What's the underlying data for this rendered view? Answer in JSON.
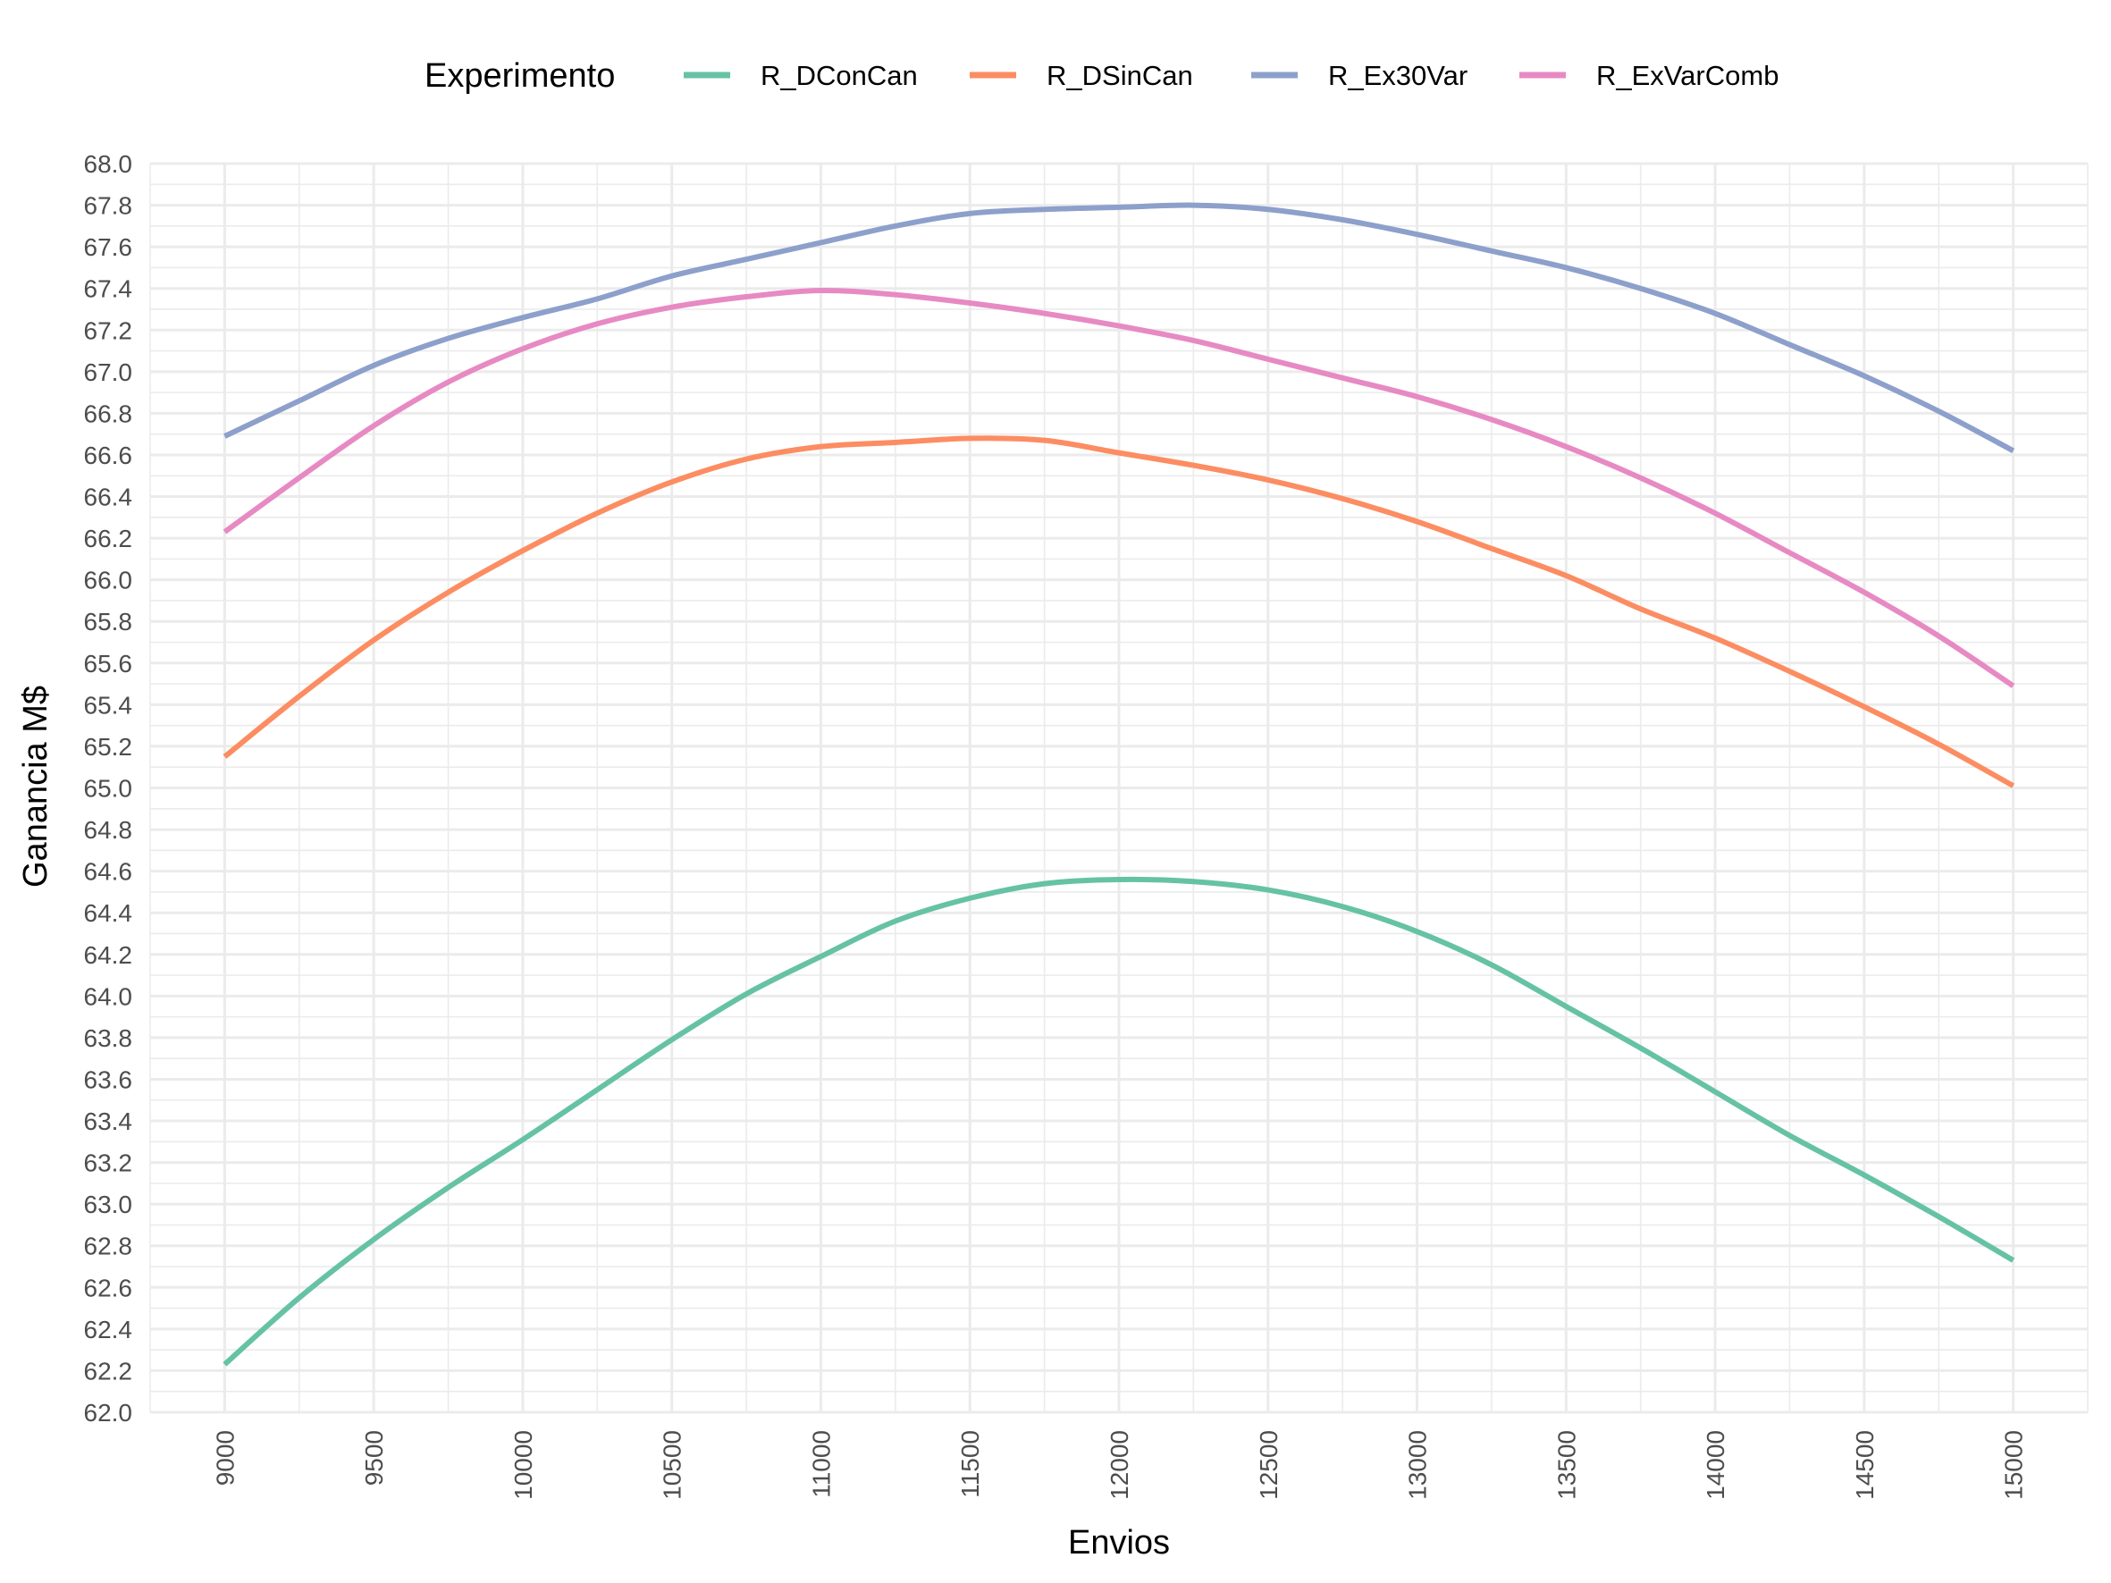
{
  "chart_data": {
    "type": "line",
    "title": "",
    "xlabel": "Envios",
    "ylabel": "Ganancia M$",
    "xlim": [
      8750,
      15250
    ],
    "ylim": [
      62.0,
      68.0
    ],
    "x_ticks": [
      "9000",
      "9500",
      "10000",
      "10500",
      "11000",
      "11500",
      "12000",
      "12500",
      "13000",
      "13500",
      "14000",
      "14500",
      "15000"
    ],
    "y_ticks": [
      "62.0",
      "62.2",
      "62.4",
      "62.6",
      "62.8",
      "63.0",
      "63.2",
      "63.4",
      "63.6",
      "63.8",
      "64.0",
      "64.2",
      "64.4",
      "64.6",
      "64.8",
      "65.0",
      "65.2",
      "65.4",
      "65.6",
      "65.8",
      "66.0",
      "66.2",
      "66.4",
      "66.6",
      "66.8",
      "67.0",
      "67.2",
      "67.4",
      "67.6",
      "67.8",
      "68.0"
    ],
    "grid": true,
    "legend": {
      "title": "Experimento",
      "position": "top"
    },
    "x": [
      9000,
      9250,
      9500,
      9750,
      10000,
      10250,
      10500,
      10750,
      11000,
      11250,
      11500,
      11750,
      12000,
      12250,
      12500,
      12750,
      13000,
      13250,
      13500,
      13750,
      14000,
      14250,
      14500,
      14750,
      15000
    ],
    "series": [
      {
        "name": "R_DConCan",
        "color": "#66c2a5",
        "values": [
          62.23,
          62.55,
          62.83,
          63.08,
          63.31,
          63.55,
          63.79,
          64.01,
          64.19,
          64.36,
          64.47,
          64.54,
          64.56,
          64.55,
          64.51,
          64.43,
          64.31,
          64.15,
          63.95,
          63.75,
          63.54,
          63.33,
          63.14,
          62.94,
          62.73
        ]
      },
      {
        "name": "R_DSinCan",
        "color": "#fc8d62",
        "values": [
          65.15,
          65.44,
          65.71,
          65.94,
          66.14,
          66.32,
          66.47,
          66.58,
          66.64,
          66.66,
          66.68,
          66.67,
          66.61,
          66.55,
          66.48,
          66.39,
          66.28,
          66.15,
          66.02,
          65.86,
          65.72,
          65.56,
          65.39,
          65.21,
          65.01
        ]
      },
      {
        "name": "R_Ex30Var",
        "color": "#8da0cb",
        "values": [
          66.69,
          66.86,
          67.03,
          67.16,
          67.26,
          67.35,
          67.46,
          67.54,
          67.62,
          67.7,
          67.76,
          67.78,
          67.79,
          67.8,
          67.78,
          67.73,
          67.66,
          67.58,
          67.5,
          67.4,
          67.28,
          67.13,
          66.98,
          66.81,
          66.62
        ]
      },
      {
        "name": "R_ExVarComb",
        "color": "#e78ac3",
        "values": [
          66.23,
          66.49,
          66.74,
          66.95,
          67.11,
          67.23,
          67.31,
          67.36,
          67.39,
          67.37,
          67.33,
          67.28,
          67.22,
          67.15,
          67.06,
          66.97,
          66.88,
          66.77,
          66.64,
          66.49,
          66.32,
          66.13,
          65.94,
          65.73,
          65.49
        ]
      }
    ]
  }
}
